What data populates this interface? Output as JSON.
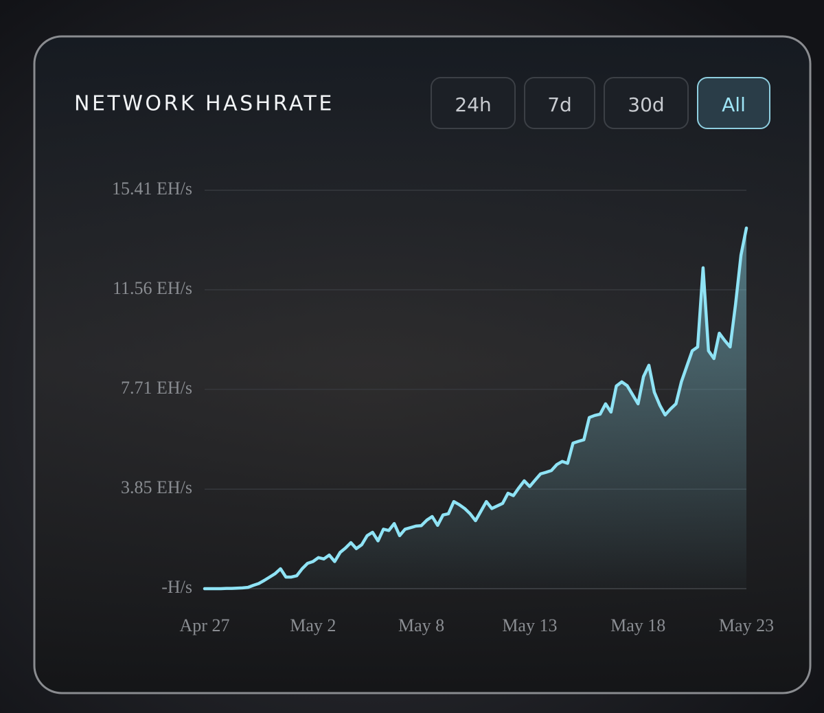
{
  "chart_data": {
    "type": "line",
    "title": "NETWORK HASHRATE",
    "values": [
      0,
      0,
      0,
      0,
      0.01,
      0.01,
      0.02,
      0.03,
      0.05,
      0.13,
      0.2,
      0.32,
      0.45,
      0.58,
      0.77,
      0.45,
      0.45,
      0.5,
      0.77,
      0.98,
      1.05,
      1.2,
      1.15,
      1.3,
      1.05,
      1.4,
      1.57,
      1.78,
      1.55,
      1.7,
      2.05,
      2.18,
      1.85,
      2.3,
      2.25,
      2.52,
      2.05,
      2.3,
      2.36,
      2.42,
      2.44,
      2.65,
      2.79,
      2.45,
      2.85,
      2.9,
      3.37,
      3.25,
      3.1,
      2.9,
      2.63,
      3.0,
      3.37,
      3.1,
      3.2,
      3.3,
      3.69,
      3.6,
      3.9,
      4.17,
      3.95,
      4.2,
      4.44,
      4.5,
      4.57,
      4.8,
      4.92,
      4.85,
      5.63,
      5.7,
      5.76,
      6.62,
      6.7,
      6.75,
      7.15,
      6.83,
      7.84,
      8.0,
      7.85,
      7.5,
      7.15,
      8.2,
      8.64,
      7.6,
      7.1,
      6.72,
      6.95,
      7.15,
      8.0,
      8.6,
      9.2,
      9.35,
      12.41,
      9.2,
      8.9,
      9.88,
      9.6,
      9.35,
      11.0,
      12.9,
      13.95
    ],
    "color": "#8fe3f5",
    "xlim": [
      0,
      100
    ],
    "xticks": [
      {
        "value": 0,
        "label": "Apr 27"
      },
      {
        "value": 20,
        "label": "May 2"
      },
      {
        "value": 40,
        "label": "May 8"
      },
      {
        "value": 60,
        "label": "May 13"
      },
      {
        "value": 80,
        "label": "May 18"
      },
      {
        "value": 100,
        "label": "May 23"
      }
    ],
    "ylim": [
      0,
      15.41
    ],
    "yticks": [
      {
        "value": 0,
        "label": "-H/s"
      },
      {
        "value": 3.85,
        "label": "3.85 EH/s"
      },
      {
        "value": 7.71,
        "label": "7.71 EH/s"
      },
      {
        "value": 11.56,
        "label": "11.56 EH/s"
      },
      {
        "value": 15.41,
        "label": "15.41 EH/s"
      }
    ],
    "grid": true
  },
  "controls": {
    "buttons": [
      "24h",
      "7d",
      "30d",
      "All"
    ],
    "active": 3
  }
}
